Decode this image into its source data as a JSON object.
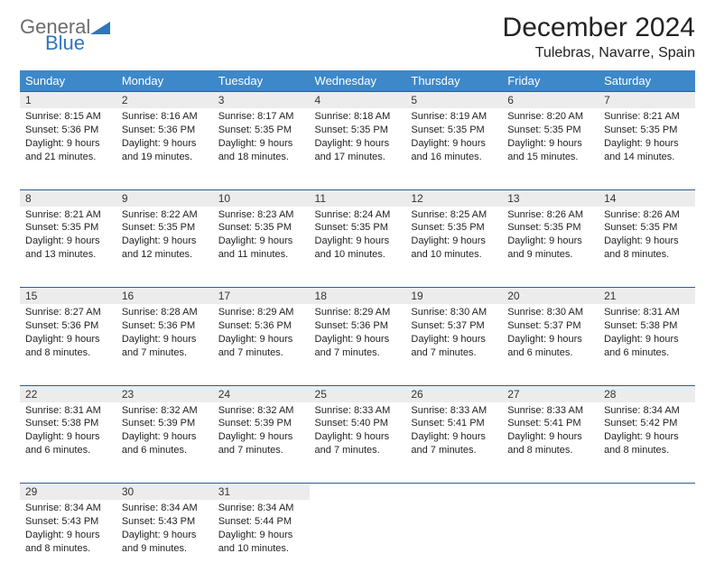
{
  "logo": {
    "text1": "General",
    "text2": "Blue"
  },
  "title": "December 2024",
  "location": "Tulebras, Navarre, Spain",
  "colors": {
    "header_bg": "#3d88c8",
    "header_text": "#ffffff",
    "rule": "#2f5f8f",
    "daynum_bg": "#ececec",
    "logo_gray": "#6c6c6c",
    "logo_blue": "#2f76bd"
  },
  "day_headers": [
    "Sunday",
    "Monday",
    "Tuesday",
    "Wednesday",
    "Thursday",
    "Friday",
    "Saturday"
  ],
  "weeks": [
    [
      {
        "n": "1",
        "sr": "Sunrise: 8:15 AM",
        "ss": "Sunset: 5:36 PM",
        "dl": "Daylight: 9 hours and 21 minutes."
      },
      {
        "n": "2",
        "sr": "Sunrise: 8:16 AM",
        "ss": "Sunset: 5:36 PM",
        "dl": "Daylight: 9 hours and 19 minutes."
      },
      {
        "n": "3",
        "sr": "Sunrise: 8:17 AM",
        "ss": "Sunset: 5:35 PM",
        "dl": "Daylight: 9 hours and 18 minutes."
      },
      {
        "n": "4",
        "sr": "Sunrise: 8:18 AM",
        "ss": "Sunset: 5:35 PM",
        "dl": "Daylight: 9 hours and 17 minutes."
      },
      {
        "n": "5",
        "sr": "Sunrise: 8:19 AM",
        "ss": "Sunset: 5:35 PM",
        "dl": "Daylight: 9 hours and 16 minutes."
      },
      {
        "n": "6",
        "sr": "Sunrise: 8:20 AM",
        "ss": "Sunset: 5:35 PM",
        "dl": "Daylight: 9 hours and 15 minutes."
      },
      {
        "n": "7",
        "sr": "Sunrise: 8:21 AM",
        "ss": "Sunset: 5:35 PM",
        "dl": "Daylight: 9 hours and 14 minutes."
      }
    ],
    [
      {
        "n": "8",
        "sr": "Sunrise: 8:21 AM",
        "ss": "Sunset: 5:35 PM",
        "dl": "Daylight: 9 hours and 13 minutes."
      },
      {
        "n": "9",
        "sr": "Sunrise: 8:22 AM",
        "ss": "Sunset: 5:35 PM",
        "dl": "Daylight: 9 hours and 12 minutes."
      },
      {
        "n": "10",
        "sr": "Sunrise: 8:23 AM",
        "ss": "Sunset: 5:35 PM",
        "dl": "Daylight: 9 hours and 11 minutes."
      },
      {
        "n": "11",
        "sr": "Sunrise: 8:24 AM",
        "ss": "Sunset: 5:35 PM",
        "dl": "Daylight: 9 hours and 10 minutes."
      },
      {
        "n": "12",
        "sr": "Sunrise: 8:25 AM",
        "ss": "Sunset: 5:35 PM",
        "dl": "Daylight: 9 hours and 10 minutes."
      },
      {
        "n": "13",
        "sr": "Sunrise: 8:26 AM",
        "ss": "Sunset: 5:35 PM",
        "dl": "Daylight: 9 hours and 9 minutes."
      },
      {
        "n": "14",
        "sr": "Sunrise: 8:26 AM",
        "ss": "Sunset: 5:35 PM",
        "dl": "Daylight: 9 hours and 8 minutes."
      }
    ],
    [
      {
        "n": "15",
        "sr": "Sunrise: 8:27 AM",
        "ss": "Sunset: 5:36 PM",
        "dl": "Daylight: 9 hours and 8 minutes."
      },
      {
        "n": "16",
        "sr": "Sunrise: 8:28 AM",
        "ss": "Sunset: 5:36 PM",
        "dl": "Daylight: 9 hours and 7 minutes."
      },
      {
        "n": "17",
        "sr": "Sunrise: 8:29 AM",
        "ss": "Sunset: 5:36 PM",
        "dl": "Daylight: 9 hours and 7 minutes."
      },
      {
        "n": "18",
        "sr": "Sunrise: 8:29 AM",
        "ss": "Sunset: 5:36 PM",
        "dl": "Daylight: 9 hours and 7 minutes."
      },
      {
        "n": "19",
        "sr": "Sunrise: 8:30 AM",
        "ss": "Sunset: 5:37 PM",
        "dl": "Daylight: 9 hours and 7 minutes."
      },
      {
        "n": "20",
        "sr": "Sunrise: 8:30 AM",
        "ss": "Sunset: 5:37 PM",
        "dl": "Daylight: 9 hours and 6 minutes."
      },
      {
        "n": "21",
        "sr": "Sunrise: 8:31 AM",
        "ss": "Sunset: 5:38 PM",
        "dl": "Daylight: 9 hours and 6 minutes."
      }
    ],
    [
      {
        "n": "22",
        "sr": "Sunrise: 8:31 AM",
        "ss": "Sunset: 5:38 PM",
        "dl": "Daylight: 9 hours and 6 minutes."
      },
      {
        "n": "23",
        "sr": "Sunrise: 8:32 AM",
        "ss": "Sunset: 5:39 PM",
        "dl": "Daylight: 9 hours and 6 minutes."
      },
      {
        "n": "24",
        "sr": "Sunrise: 8:32 AM",
        "ss": "Sunset: 5:39 PM",
        "dl": "Daylight: 9 hours and 7 minutes."
      },
      {
        "n": "25",
        "sr": "Sunrise: 8:33 AM",
        "ss": "Sunset: 5:40 PM",
        "dl": "Daylight: 9 hours and 7 minutes."
      },
      {
        "n": "26",
        "sr": "Sunrise: 8:33 AM",
        "ss": "Sunset: 5:41 PM",
        "dl": "Daylight: 9 hours and 7 minutes."
      },
      {
        "n": "27",
        "sr": "Sunrise: 8:33 AM",
        "ss": "Sunset: 5:41 PM",
        "dl": "Daylight: 9 hours and 8 minutes."
      },
      {
        "n": "28",
        "sr": "Sunrise: 8:34 AM",
        "ss": "Sunset: 5:42 PM",
        "dl": "Daylight: 9 hours and 8 minutes."
      }
    ],
    [
      {
        "n": "29",
        "sr": "Sunrise: 8:34 AM",
        "ss": "Sunset: 5:43 PM",
        "dl": "Daylight: 9 hours and 8 minutes."
      },
      {
        "n": "30",
        "sr": "Sunrise: 8:34 AM",
        "ss": "Sunset: 5:43 PM",
        "dl": "Daylight: 9 hours and 9 minutes."
      },
      {
        "n": "31",
        "sr": "Sunrise: 8:34 AM",
        "ss": "Sunset: 5:44 PM",
        "dl": "Daylight: 9 hours and 10 minutes."
      },
      null,
      null,
      null,
      null
    ]
  ]
}
